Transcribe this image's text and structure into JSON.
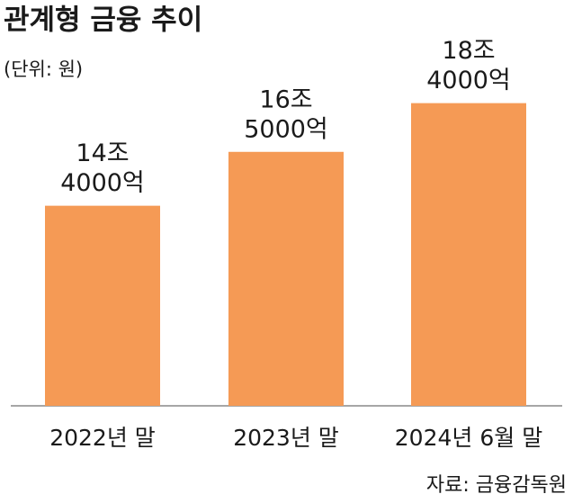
{
  "chart_data": {
    "type": "bar",
    "title": "관계형 금융 추이",
    "subtitle": "(단위: 원)",
    "source": "자료: 금융감독원",
    "categories": [
      "2022년 말",
      "2023년 말",
      "2024년 6월 말"
    ],
    "values": [
      14400000000000,
      16500000000000,
      18400000000000
    ],
    "value_labels": [
      [
        "14조",
        "4000억"
      ],
      [
        "16조",
        "5000억"
      ],
      [
        "18조",
        "4000억"
      ]
    ],
    "color": "#f59a55",
    "ylim": [
      6600000000000,
      20000000000000
    ]
  }
}
